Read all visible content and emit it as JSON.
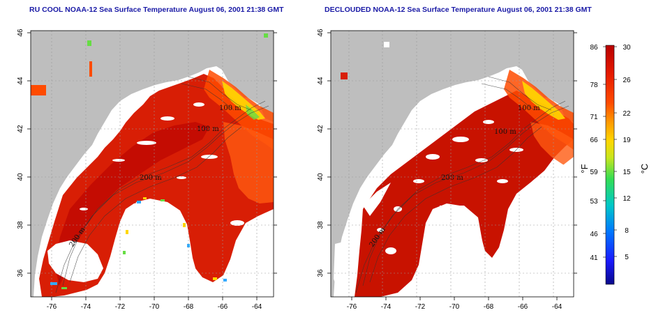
{
  "panels": [
    {
      "id": "left",
      "title": "RU COOL NOAA-12 Sea Surface Temperature August 06, 2001 21:38 GMT",
      "contour_labels": [
        "100 m",
        "100 m",
        "200 m",
        "200 m"
      ]
    },
    {
      "id": "right",
      "title": "DECLOUDED NOAA-12 Sea Surface Temperature August 06, 2001 21:38 GMT",
      "contour_labels": [
        "100 m",
        "100 m",
        "200 m",
        "200 m"
      ]
    }
  ],
  "axes": {
    "x_ticks": [
      "-76",
      "-74",
      "-72",
      "-70",
      "-68",
      "-66",
      "-64"
    ],
    "y_ticks": [
      "36",
      "38",
      "40",
      "42",
      "44",
      "46"
    ]
  },
  "colorbar": {
    "fahrenheit_label": "°F",
    "celsius_label": "°C",
    "fahrenheit_ticks": [
      "86",
      "78",
      "71",
      "66",
      "59",
      "53",
      "46",
      "41"
    ],
    "celsius_ticks": [
      "30",
      "26",
      "22",
      "19",
      "15",
      "12",
      "8",
      "5"
    ],
    "colors": [
      "#08088a",
      "#1a1aff",
      "#0077ff",
      "#00c8c8",
      "#33dd55",
      "#c8e61e",
      "#ffd700",
      "#ff9900",
      "#ff4b00",
      "#e61a00",
      "#b80000"
    ]
  },
  "colors": {
    "land": "#bebebe",
    "cloud_mask": "#ffffff",
    "warm_sst": "#d81e05",
    "title_text": "#1a1aa6"
  }
}
